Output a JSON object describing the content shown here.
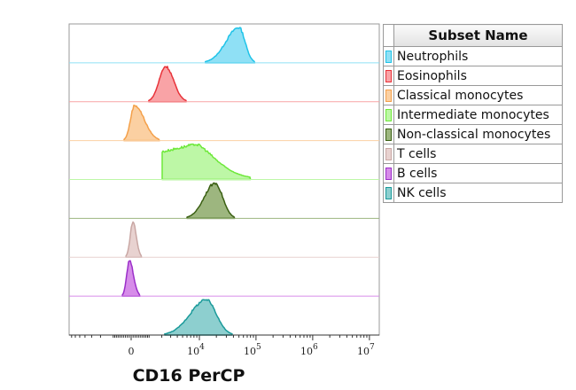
{
  "chart_data": {
    "type": "histogram-overlay",
    "xlabel": "CD16 PerCP",
    "x_scale": "biexponential",
    "x_ticks": [
      {
        "value": 0,
        "base": "0",
        "exp": ""
      },
      {
        "value": 10000,
        "base": "10",
        "exp": "4"
      },
      {
        "value": 100000,
        "base": "10",
        "exp": "5"
      },
      {
        "value": 1000000,
        "base": "10",
        "exp": "6"
      },
      {
        "value": 10000000,
        "base": "10",
        "exp": "7"
      }
    ],
    "legend_title": "Subset Name",
    "legend_placement": "right",
    "series": [
      {
        "name": "Neutrophils",
        "stroke": "#1fc3e8",
        "fill": "#8fe0f5",
        "peak": 50000,
        "range": [
          12800,
          95000
        ]
      },
      {
        "name": "Eosinophils",
        "stroke": "#e8333a",
        "fill": "#f9a3a6",
        "peak": 2400,
        "range": [
          980,
          5800
        ]
      },
      {
        "name": "Classical monocytes",
        "stroke": "#f4a04a",
        "fill": "#fbd0a2",
        "peak": 180,
        "range": [
          -365,
          1790
        ]
      },
      {
        "name": "Intermediate monocytes",
        "stroke": "#6ee83a",
        "fill": "#bdf7a6",
        "peak": 8500,
        "range": [
          2040,
          80000
        ]
      },
      {
        "name": "Non-classical monocytes",
        "stroke": "#3a5f12",
        "fill": "#9db67f",
        "peak": 19000,
        "range": [
          6000,
          42000
        ]
      },
      {
        "name": "T cells",
        "stroke": "#c9a7a4",
        "fill": "#e8d2d0",
        "peak": 90,
        "range": [
          -270,
          550
        ]
      },
      {
        "name": "B cells",
        "stroke": "#9b2fc9",
        "fill": "#d68ce9",
        "peak": -90,
        "range": [
          -460,
          460
        ]
      },
      {
        "name": "NK cells",
        "stroke": "#1a9a9a",
        "fill": "#8dcfcf",
        "peak": 13300,
        "range": [
          2300,
          38000
        ]
      }
    ]
  }
}
